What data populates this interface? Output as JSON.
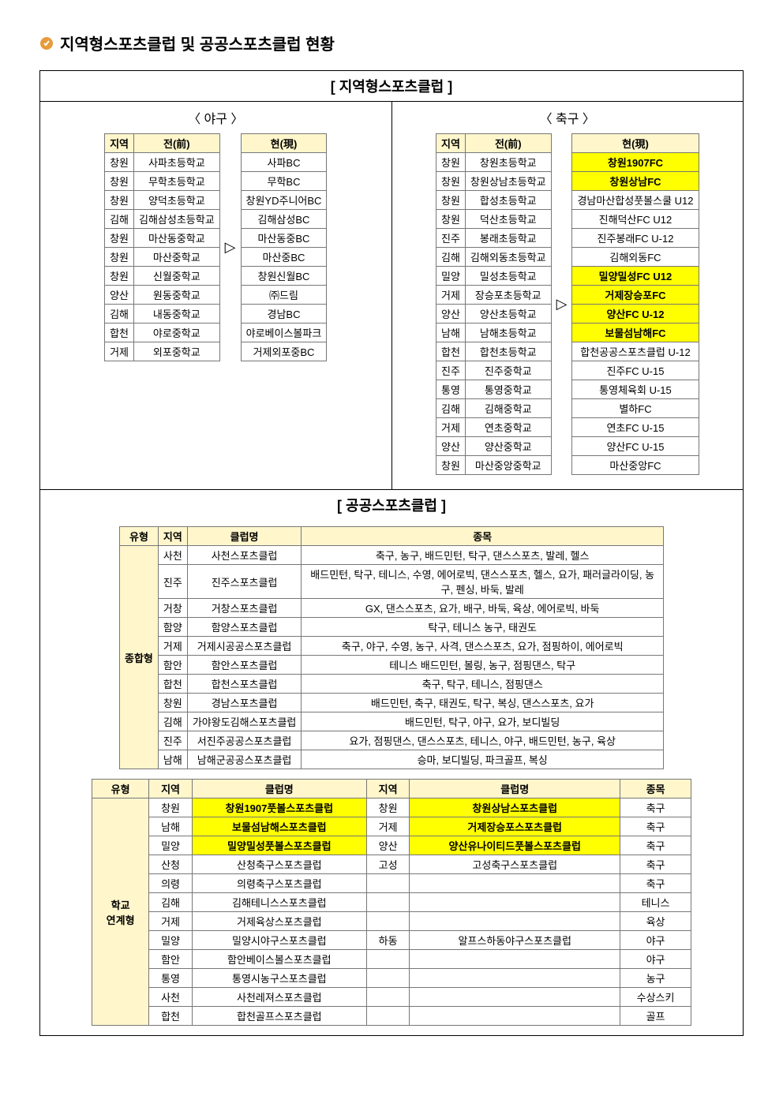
{
  "title": "지역형스포츠클럽 및 공공스포츠클럽 현황",
  "section1": {
    "heading": "[ 지역형스포츠클럽 ]",
    "baseball": {
      "sub": "〈 야구 〉",
      "header_region": "지역",
      "header_before": "전(前)",
      "header_after": "현(現)",
      "rows": [
        {
          "region": "창원",
          "before": "사파초등학교",
          "after": "사파BC"
        },
        {
          "region": "창원",
          "before": "무학초등학교",
          "after": "무학BC"
        },
        {
          "region": "창원",
          "before": "양덕초등학교",
          "after": "창원YD주니어BC"
        },
        {
          "region": "김해",
          "before": "김해삼성초등학교",
          "after": "김해삼성BC"
        },
        {
          "region": "창원",
          "before": "마산동중학교",
          "after": "마산동중BC"
        },
        {
          "region": "창원",
          "before": "마산중학교",
          "after": "마산중BC"
        },
        {
          "region": "창원",
          "before": "신월중학교",
          "after": "창원신월BC"
        },
        {
          "region": "양산",
          "before": "원동중학교",
          "after": "㈜드림"
        },
        {
          "region": "김해",
          "before": "내동중학교",
          "after": "경남BC"
        },
        {
          "region": "합천",
          "before": "야로중학교",
          "after": "야로베이스볼파크"
        },
        {
          "region": "거제",
          "before": "외포중학교",
          "after": "거제외포중BC"
        }
      ]
    },
    "soccer": {
      "sub": "〈 축구 〉",
      "header_region": "지역",
      "header_before": "전(前)",
      "header_after": "현(現)",
      "rows": [
        {
          "region": "창원",
          "before": "창원초등학교",
          "after": "창원1907FC",
          "hl": true
        },
        {
          "region": "창원",
          "before": "창원상남초등학교",
          "after": "창원상남FC",
          "hl": true
        },
        {
          "region": "창원",
          "before": "합성초등학교",
          "after": "경남마산합성풋볼스쿨 U12"
        },
        {
          "region": "창원",
          "before": "덕산초등학교",
          "after": "진해덕산FC U12"
        },
        {
          "region": "진주",
          "before": "봉래초등학교",
          "after": "진주봉래FC U-12"
        },
        {
          "region": "김해",
          "before": "김해외동초등학교",
          "after": "김해외동FC"
        },
        {
          "region": "밀양",
          "before": "밀성초등학교",
          "after": "밀양밀성FC U12",
          "hl": true
        },
        {
          "region": "거제",
          "before": "장승포초등학교",
          "after": "거제장승포FC",
          "hl": true
        },
        {
          "region": "양산",
          "before": "양산초등학교",
          "after": "양산FC U-12",
          "hl": true
        },
        {
          "region": "남해",
          "before": "남해초등학교",
          "after": "보물섬남해FC",
          "hl": true
        },
        {
          "region": "합천",
          "before": "합천초등학교",
          "after": "합천공공스포츠클럽 U-12"
        },
        {
          "region": "진주",
          "before": "진주중학교",
          "after": "진주FC U-15"
        },
        {
          "region": "통영",
          "before": "통영중학교",
          "after": "통영체육회 U-15"
        },
        {
          "region": "김해",
          "before": "김해중학교",
          "after": "별하FC"
        },
        {
          "region": "거제",
          "before": "연초중학교",
          "after": "연초FC U-15"
        },
        {
          "region": "양산",
          "before": "양산중학교",
          "after": "양산FC U-15"
        },
        {
          "region": "창원",
          "before": "마산중앙중학교",
          "after": "마산중앙FC"
        }
      ]
    }
  },
  "section2": {
    "heading": "[ 공공스포츠클럽 ]",
    "header_type": "유형",
    "header_region": "지역",
    "header_club": "클럽명",
    "header_sport": "종목",
    "type1_label": "종합형",
    "type1_rows": [
      {
        "region": "사천",
        "club": "사천스포츠클럽",
        "sports": "축구, 농구, 배드민턴, 탁구, 댄스스포츠, 발레, 헬스"
      },
      {
        "region": "진주",
        "club": "진주스포츠클럽",
        "sports": "배드민턴, 탁구, 테니스, 수영, 에어로빅, 댄스스포츠, 헬스, 요가, 패러글라이딩, 농구, 펜싱, 바둑, 발레"
      },
      {
        "region": "거창",
        "club": "거창스포츠클럽",
        "sports": "GX, 댄스스포츠, 요가, 배구, 바둑, 육상, 에어로빅, 바둑"
      },
      {
        "region": "함양",
        "club": "함양스포츠클럽",
        "sports": "탁구, 테니스 농구, 태권도"
      },
      {
        "region": "거제",
        "club": "거제시공공스포츠클럽",
        "sports": "축구, 야구, 수영, 농구, 사격, 댄스스포츠, 요가, 점핑하이, 에어로빅"
      },
      {
        "region": "함안",
        "club": "함안스포츠클럽",
        "sports": "테니스 배드민턴, 볼링, 농구, 점핑댄스, 탁구"
      },
      {
        "region": "합천",
        "club": "합천스포츠클럽",
        "sports": "축구, 탁구, 테니스, 점핑댄스"
      },
      {
        "region": "창원",
        "club": "경남스포츠클럽",
        "sports": "배드민턴, 축구, 태권도, 탁구, 복싱, 댄스스포츠, 요가"
      },
      {
        "region": "김해",
        "club": "가야왕도김해스포츠클럽",
        "sports": "배드민턴, 탁구, 야구, 요가, 보디빌딩"
      },
      {
        "region": "진주",
        "club": "서진주공공스포츠클럽",
        "sports": "요가, 점핑댄스, 댄스스포츠, 테니스, 야구, 배드민턴, 농구, 육상"
      },
      {
        "region": "남해",
        "club": "남해군공공스포츠클럽",
        "sports": "승마, 보디빌딩, 파크골프, 복싱"
      }
    ],
    "type2_label": "학교\n연계형",
    "header2_region1": "지역",
    "header2_club1": "클럽명",
    "header2_region2": "지역",
    "header2_club2": "클럽명",
    "header2_sport": "종목",
    "type2_rows": [
      {
        "r1": "창원",
        "c1": "창원1907풋볼스포츠클럽",
        "hl1": true,
        "r2": "창원",
        "c2": "창원상남스포츠클럽",
        "hl2": true,
        "s": "축구"
      },
      {
        "r1": "남해",
        "c1": "보물섬남해스포츠클럽",
        "hl1": true,
        "r2": "거제",
        "c2": "거제장승포스포츠클럽",
        "hl2": true,
        "s": "축구"
      },
      {
        "r1": "밀양",
        "c1": "밀양밀성풋볼스포츠클럽",
        "hl1": true,
        "r2": "양산",
        "c2": "양산유나이티드풋볼스포츠클럽",
        "hl2": true,
        "s": "축구"
      },
      {
        "r1": "산청",
        "c1": "산청축구스포츠클럽",
        "r2": "고성",
        "c2": "고성축구스포츠클럽",
        "s": "축구"
      },
      {
        "r1": "의령",
        "c1": "의령축구스포츠클럽",
        "r2": "",
        "c2": "",
        "s": "축구"
      },
      {
        "r1": "김해",
        "c1": "김해테니스스포츠클럽",
        "r2": "",
        "c2": "",
        "s": "테니스"
      },
      {
        "r1": "거제",
        "c1": "거제육상스포츠클럽",
        "r2": "",
        "c2": "",
        "s": "육상"
      },
      {
        "r1": "밀양",
        "c1": "밀양시야구스포츠클럽",
        "r2": "하동",
        "c2": "알프스하동야구스포츠클럽",
        "s": "야구"
      },
      {
        "r1": "함안",
        "c1": "함안베이스볼스포츠클럽",
        "r2": "",
        "c2": "",
        "s": "야구"
      },
      {
        "r1": "통영",
        "c1": "통영시농구스포츠클럽",
        "r2": "",
        "c2": "",
        "s": "농구"
      },
      {
        "r1": "사천",
        "c1": "사천레져스포츠클럽",
        "r2": "",
        "c2": "",
        "s": "수상스키"
      },
      {
        "r1": "합천",
        "c1": "합천골프스포츠클럽",
        "r2": "",
        "c2": "",
        "s": "골프"
      }
    ]
  },
  "colors": {
    "highlight": "#ffff00",
    "header_bg": "#fff6cc",
    "border": "#777777",
    "icon": "#e89b3c"
  }
}
